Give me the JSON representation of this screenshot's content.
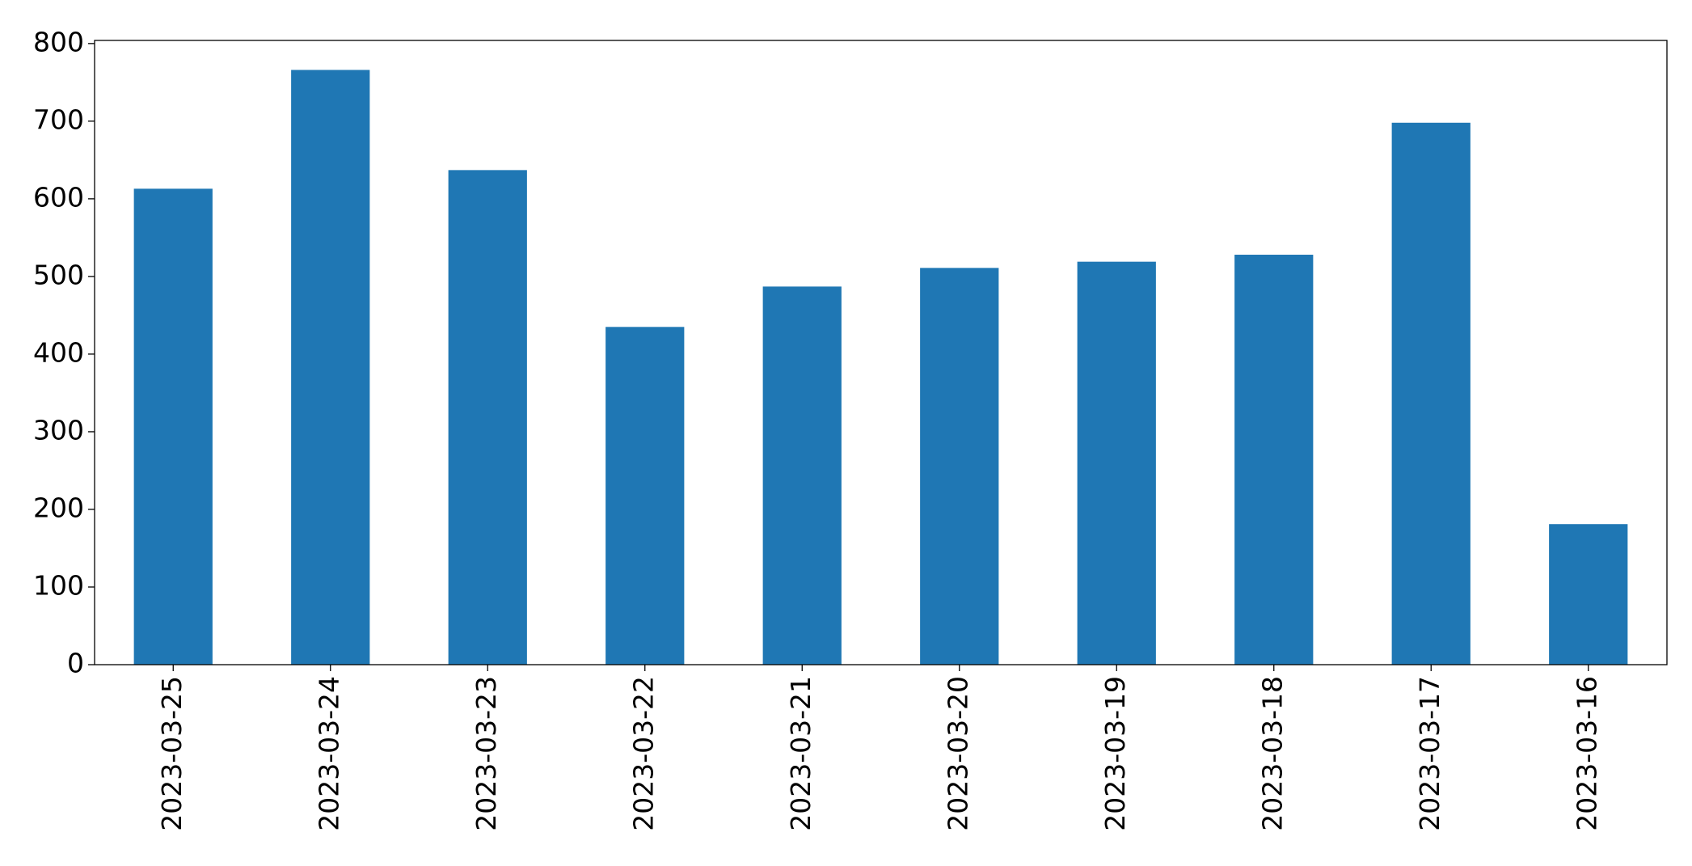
{
  "chart_data": {
    "type": "bar",
    "categories": [
      "2023-03-25",
      "2023-03-24",
      "2023-03-23",
      "2023-03-22",
      "2023-03-21",
      "2023-03-20",
      "2023-03-19",
      "2023-03-18",
      "2023-03-17",
      "2023-03-16"
    ],
    "values": [
      613,
      766,
      637,
      435,
      487,
      511,
      519,
      528,
      698,
      181
    ],
    "color": "#1f77b4",
    "ylim": [
      0,
      804
    ],
    "yticks": [
      0,
      100,
      200,
      300,
      400,
      500,
      600,
      700,
      800
    ],
    "grid": false
  }
}
